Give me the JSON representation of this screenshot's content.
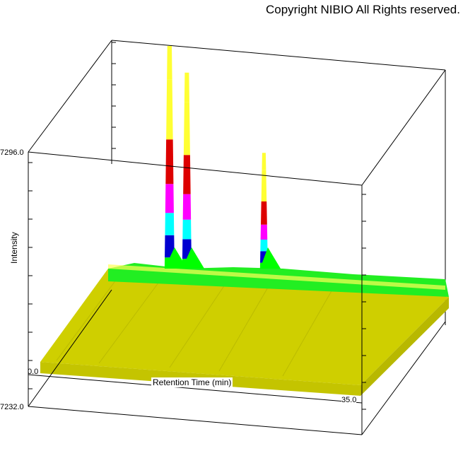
{
  "copyright": "Copyright NIBIO All Rights reserved.",
  "chart_data": {
    "type": "area",
    "view": "3d-surface",
    "xlabel": "Retention Time (min)",
    "ylabel": "Intensity",
    "xlim": [
      0.0,
      35.0
    ],
    "x_tick_labels": [
      "0.0",
      "35.0"
    ],
    "y_tick_labels": [
      "7296.0",
      "7232.0"
    ],
    "ylim": [
      7232.0,
      7296.0
    ],
    "color_bands": [
      "#d4d400",
      "#00ff00",
      "#0000d0",
      "#00ffff",
      "#ff00ff",
      "#dd0000",
      "#ffff33"
    ],
    "peaks": [
      {
        "x": 5.2,
        "relative_height": 1.0
      },
      {
        "x": 7.0,
        "relative_height": 0.88
      },
      {
        "x": 15.0,
        "relative_height": 0.52
      }
    ],
    "grid": false,
    "legend": "none"
  }
}
